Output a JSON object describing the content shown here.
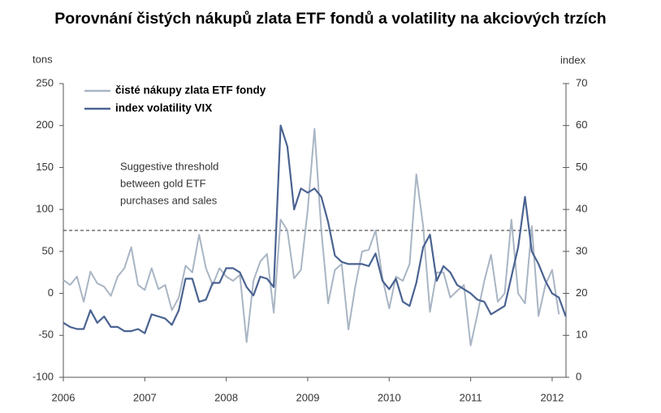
{
  "chart_data": {
    "type": "line",
    "title": "Porovnání čistých nákupů zlata ETF fondů a volatility na akciových trzích",
    "y_label": "tons",
    "y2_label": "index",
    "annotation": [
      "Suggestive threshold",
      "between gold ETF",
      "purchases and sales"
    ],
    "threshold": 75,
    "x": [
      2006,
      2006.083,
      2006.167,
      2006.25,
      2006.333,
      2006.417,
      2006.5,
      2006.583,
      2006.667,
      2006.75,
      2006.833,
      2006.917,
      2007,
      2007.083,
      2007.167,
      2007.25,
      2007.333,
      2007.417,
      2007.5,
      2007.583,
      2007.667,
      2007.75,
      2007.833,
      2007.917,
      2008,
      2008.083,
      2008.167,
      2008.25,
      2008.333,
      2008.417,
      2008.5,
      2008.583,
      2008.667,
      2008.75,
      2008.833,
      2008.917,
      2009,
      2009.083,
      2009.167,
      2009.25,
      2009.333,
      2009.417,
      2009.5,
      2009.583,
      2009.667,
      2009.75,
      2009.833,
      2009.917,
      2010,
      2010.083,
      2010.167,
      2010.25,
      2010.333,
      2010.417,
      2010.5,
      2010.583,
      2010.667,
      2010.75,
      2010.833,
      2010.917,
      2011,
      2011.083,
      2011.167,
      2011.25,
      2011.333,
      2011.417,
      2011.5,
      2011.583,
      2011.667,
      2011.75,
      2011.833,
      2011.917,
      2012,
      2012.083,
      2012.167
    ],
    "series": [
      {
        "name": "čisté nákupy zlata ETF fondy",
        "color": "#a9b5c4",
        "values": [
          16,
          10,
          20,
          -10,
          26,
          12,
          8,
          -3,
          20,
          30,
          55,
          10,
          4,
          30,
          5,
          10,
          -20,
          -5,
          33,
          25,
          70,
          30,
          10,
          30,
          20,
          15,
          22,
          -58,
          15,
          38,
          47,
          -23,
          88,
          75,
          18,
          28,
          100,
          196,
          75,
          -12,
          28,
          35,
          -43,
          8,
          50,
          52,
          75,
          18,
          -18,
          20,
          15,
          35,
          142,
          80,
          -22,
          25,
          25,
          -5,
          3,
          10,
          -62,
          -25,
          15,
          46,
          -10,
          0,
          88,
          0,
          -12,
          80,
          -27,
          10,
          28,
          -25,
          null
        ]
      },
      {
        "name": "index volatility VIX",
        "color": "#4a6391",
        "axis": "y2",
        "values": [
          13,
          12,
          11.5,
          11.5,
          16,
          13,
          14.5,
          12,
          12,
          11,
          11,
          11.5,
          10.5,
          15,
          14.5,
          14,
          12.5,
          16,
          23.5,
          23.5,
          18,
          18.5,
          22.5,
          22.5,
          26,
          26,
          25,
          21.5,
          19.5,
          24,
          23.5,
          21.5,
          60,
          55,
          40,
          45,
          44,
          45,
          43,
          37,
          29,
          27.5,
          27,
          27,
          27,
          26.5,
          29.5,
          23,
          21,
          23.5,
          18,
          17,
          22.5,
          31,
          34,
          23,
          26.5,
          25,
          22,
          21,
          20,
          18.5,
          18,
          15,
          16,
          17,
          24,
          31,
          43,
          30,
          27,
          23,
          20,
          19,
          14.5
        ]
      }
    ],
    "xlim": [
      2006,
      2012.17
    ],
    "xticks": [
      2006,
      2007,
      2008,
      2009,
      2010,
      2011,
      2012
    ],
    "ylim": [
      -100,
      250
    ],
    "yticks": [
      -100,
      -50,
      0,
      50,
      100,
      150,
      200,
      250
    ],
    "y2lim": [
      0,
      70
    ],
    "y2ticks": [
      0,
      10,
      20,
      30,
      40,
      50,
      60,
      70
    ],
    "grid": false
  }
}
